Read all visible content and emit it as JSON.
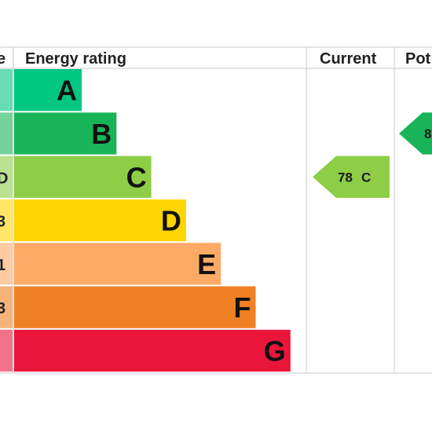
{
  "chart_data": {
    "type": "bar",
    "header": {
      "left_fragment": "e",
      "rating_label": "Energy rating",
      "current_label": "Current",
      "potential_fragment": "Pot"
    },
    "categories": [
      "A",
      "B",
      "C",
      "D",
      "E",
      "F",
      "G"
    ],
    "values": [
      1,
      2,
      3,
      4,
      5,
      6,
      7
    ],
    "band_colors": [
      "#00c781",
      "#19b459",
      "#8dce46",
      "#ffd500",
      "#fcaa65",
      "#ef8023",
      "#e9153b"
    ],
    "side_fragments": [
      "",
      "",
      "D",
      "3",
      "1",
      "3",
      ""
    ],
    "current": {
      "value": "78",
      "letter": "C",
      "band": "C",
      "color": "#8dce46"
    },
    "potential": {
      "value": "8",
      "band": "B",
      "color": "#19b459"
    }
  }
}
